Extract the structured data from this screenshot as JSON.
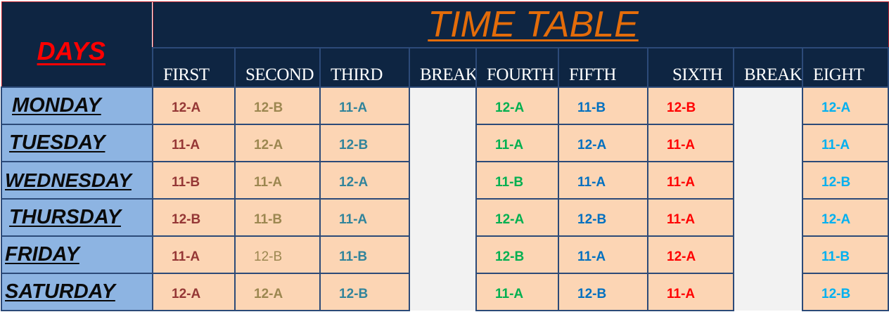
{
  "title": "TIME TABLE",
  "days_header": "DAYS",
  "periods": [
    "FIRST",
    "SECOND",
    "THIRD",
    "BREAK",
    "FOURTH",
    "FIFTH",
    "SIXTH",
    "BREAK",
    "EIGHT"
  ],
  "rows": [
    {
      "day": "MONDAY",
      "slots": [
        "12-A",
        "12-B",
        "11-A",
        "12-A",
        "11-B",
        "12-B",
        "12-A"
      ]
    },
    {
      "day": "TUESDAY",
      "slots": [
        "11-A",
        "12-A",
        "12-B",
        "11-A",
        "12-A",
        "11-A",
        "11-A"
      ]
    },
    {
      "day": "WEDNESDAY",
      "slots": [
        "11-B",
        "11-A",
        "12-A",
        "11-B",
        "11-A",
        "11-A",
        "12-B"
      ]
    },
    {
      "day": "THURSDAY",
      "slots": [
        "12-B",
        "11-B",
        "11-A",
        "12-A",
        "12-B",
        "11-A",
        "12-A"
      ]
    },
    {
      "day": "FRIDAY",
      "slots": [
        "11-A",
        "12-B",
        "11-B",
        "12-B",
        "11-A",
        "12-A",
        "11-B"
      ]
    },
    {
      "day": "SATURDAY",
      "slots": [
        "12-A",
        "12-A",
        "12-B",
        "11-A",
        "12-B",
        "11-A",
        "12-B"
      ]
    }
  ],
  "colors": {
    "header_bg": "#0e2542",
    "title_color": "#e36c0a",
    "days_color": "#ff0000",
    "day_bg": "#8db4e2",
    "slot_bg": "#fcd5b4",
    "break_bg": "#f2f2f2"
  }
}
